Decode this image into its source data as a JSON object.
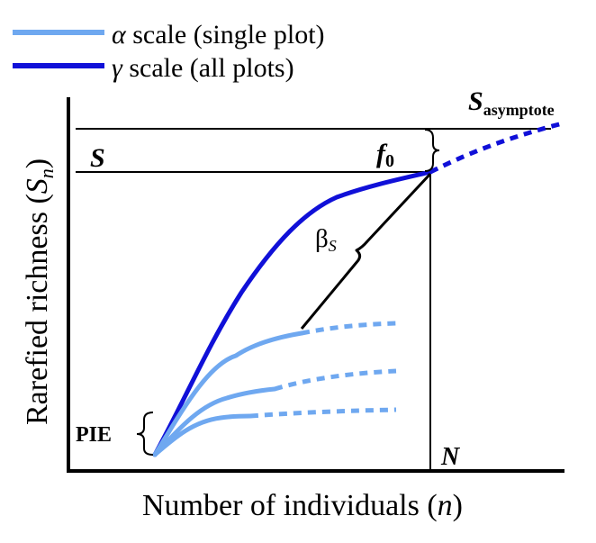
{
  "legend": {
    "items": [
      {
        "symbol": "α",
        "text": " scale (single plot)",
        "color": "#6fa8f0"
      },
      {
        "symbol": "γ",
        "text": " scale (all plots)",
        "color": "#1010d8"
      }
    ]
  },
  "axes": {
    "ylabel_main": "Rarefied richness (",
    "ylabel_var": "S",
    "ylabel_sub": "n",
    "ylabel_close": ")",
    "xlabel_main": "Number of individuals (",
    "xlabel_var": "n",
    "xlabel_close": ")"
  },
  "annotations": {
    "s_asymptote_main": "S",
    "s_asymptote_sub": "asymptote",
    "s_label": "S",
    "f0_main": "f",
    "f0_sub": "0",
    "beta_main": "β",
    "beta_sub": "S",
    "pie": "PIE",
    "n_label": "N"
  },
  "colors": {
    "alpha": "#6fa8f0",
    "gamma": "#1010d8",
    "axis": "#000000"
  }
}
